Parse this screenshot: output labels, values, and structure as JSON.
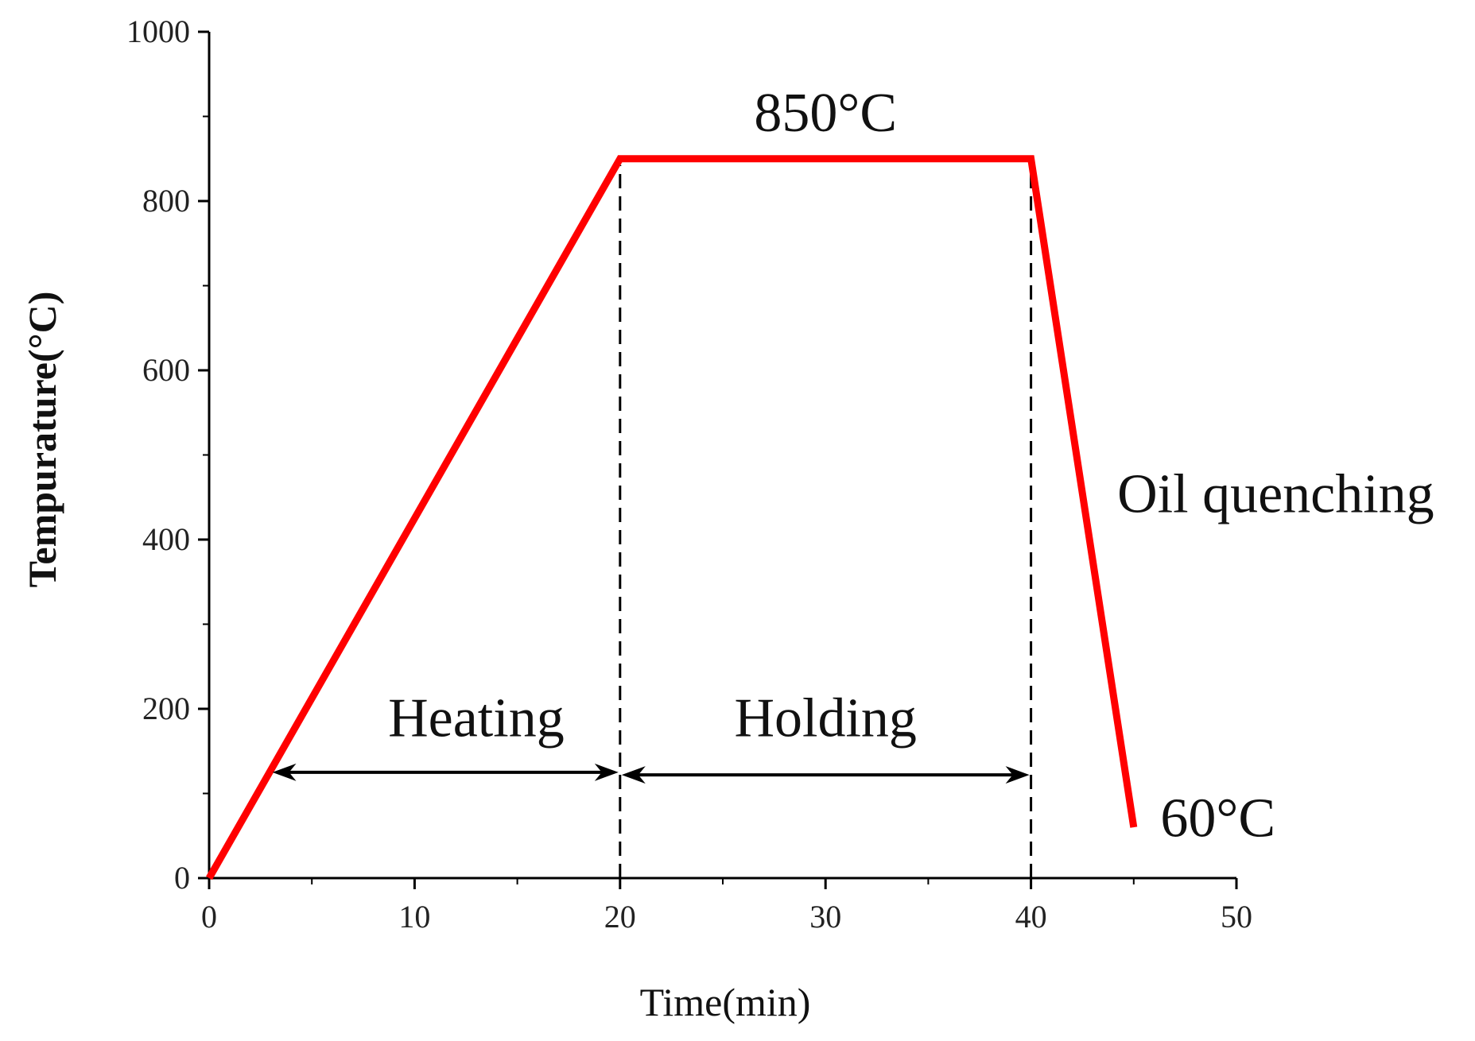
{
  "chart_data": {
    "type": "line",
    "title": "",
    "xlabel": "Time(min)",
    "ylabel": "Tempurature(°C)",
    "xlim": [
      0,
      50
    ],
    "ylim": [
      0,
      1000
    ],
    "x_ticks": [
      0,
      10,
      20,
      30,
      40,
      50
    ],
    "x_tick_labels": [
      "0",
      "10",
      "20",
      "30",
      "40",
      "50"
    ],
    "x_minor_ticks": [
      5,
      15,
      25,
      35,
      45
    ],
    "y_ticks": [
      0,
      200,
      400,
      600,
      800,
      1000
    ],
    "y_tick_labels": [
      "0",
      "200",
      "400",
      "600",
      "800",
      "1000"
    ],
    "y_minor_ticks": [
      100,
      300,
      500,
      700,
      900
    ],
    "grid": false,
    "legend": "none",
    "series": [
      {
        "color": "#ff0000",
        "x": [
          0,
          20,
          40,
          45
        ],
        "y": [
          0,
          850,
          850,
          60
        ]
      }
    ],
    "reference_lines": [
      {
        "orientation": "vertical",
        "x": 20,
        "style": "dashed",
        "color": "#000000"
      },
      {
        "orientation": "vertical",
        "x": 40,
        "style": "dashed",
        "color": "#000000"
      }
    ],
    "interval_arrows": [
      {
        "x_start": 3,
        "x_end": 20,
        "y": 125,
        "label": "Heating",
        "label_x": 13,
        "label_y": 190
      },
      {
        "x_start": 20,
        "x_end": 40,
        "y": 122,
        "label": "Holding",
        "label_x": 30,
        "label_y": 190
      }
    ],
    "annotations": [
      {
        "text": "850°C",
        "x": 30,
        "y": 905
      },
      {
        "text": "Oil quenching",
        "x": 44.2,
        "y": 455
      },
      {
        "text": "60°C",
        "x": 46.3,
        "y": 72
      }
    ]
  }
}
